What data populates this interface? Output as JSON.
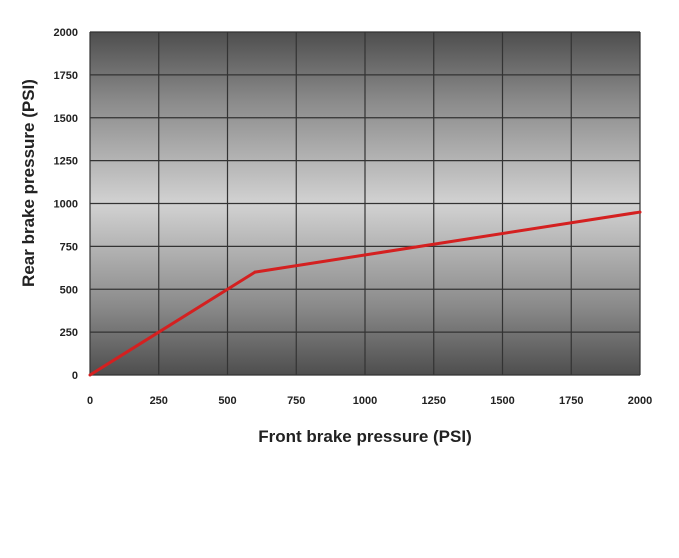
{
  "chart_data": {
    "type": "line",
    "title": "",
    "xlabel": "Front brake pressure (PSI)",
    "ylabel": "Rear brake pressure (PSI)",
    "xlim": [
      0,
      2000
    ],
    "ylim": [
      0,
      2000
    ],
    "x_ticks": [
      "0",
      "250",
      "500",
      "750",
      "1000",
      "1250",
      "1500",
      "1750",
      "2000"
    ],
    "y_ticks": [
      "0",
      "250",
      "500",
      "750",
      "1000",
      "1250",
      "1500",
      "1750",
      "2000"
    ],
    "grid": true,
    "legend": "none",
    "series": [
      {
        "color": "#d42020",
        "points": [
          {
            "x": 0,
            "y": 0
          },
          {
            "x": 600,
            "y": 600
          },
          {
            "x": 2000,
            "y": 950
          }
        ]
      }
    ],
    "colors": {
      "plot_edge": "#5a5a5a",
      "plot_center": "#d6d6d6",
      "grid": "#333333",
      "line": "#d42020"
    }
  }
}
